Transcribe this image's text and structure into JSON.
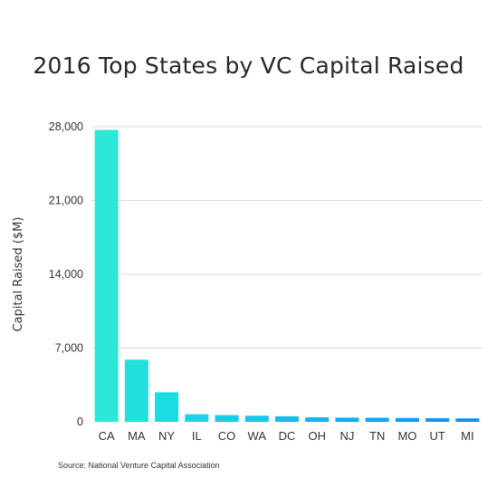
{
  "chart_data": {
    "type": "bar",
    "title": "2016 Top States by VC Capital Raised",
    "ylabel": "Capital Raised ($M)",
    "xlabel": "",
    "categories": [
      "CA",
      "MA",
      "NY",
      "IL",
      "CO",
      "WA",
      "DC",
      "OH",
      "NJ",
      "TN",
      "MO",
      "UT",
      "MI"
    ],
    "values": [
      27700,
      5900,
      2800,
      720,
      640,
      580,
      530,
      430,
      400,
      390,
      370,
      350,
      330
    ],
    "ylim": [
      0,
      28000
    ],
    "yticks": [
      0,
      7000,
      14000,
      21000,
      28000
    ],
    "ytick_labels": [
      "0",
      "7,000",
      "14,000",
      "21,000",
      "28,000"
    ],
    "grid": true,
    "legend": "none",
    "colors": [
      "#2ce6d6",
      "#22e1dd",
      "#19dde3",
      "#17d5e7",
      "#17cde9",
      "#16c5ea",
      "#15bdec",
      "#14b5ed",
      "#13adee",
      "#12a6ef",
      "#119ef0",
      "#1096f1",
      "#0f8ef2"
    ],
    "source": "Source: National Venture Capital Association"
  }
}
